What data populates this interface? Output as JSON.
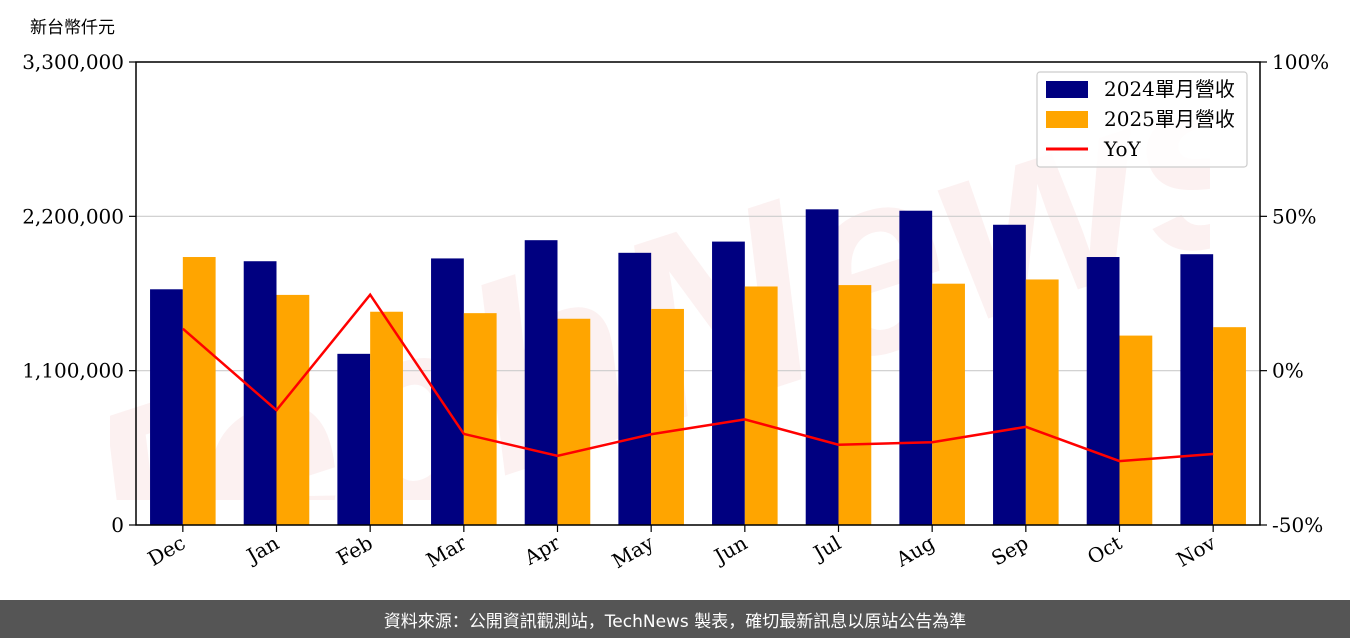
{
  "chart_data": {
    "type": "bar",
    "y_unit_label": "新台幣仟元",
    "categories": [
      "Dec",
      "Jan",
      "Feb",
      "Mar",
      "Apr",
      "May",
      "Jun",
      "Jul",
      "Aug",
      "Sep",
      "Oct",
      "Nov"
    ],
    "series": [
      {
        "name": "2024單月營收",
        "type": "bar",
        "axis": "left",
        "color": "#000080",
        "values": [
          1680000,
          1880000,
          1220000,
          1900000,
          2030000,
          1940000,
          2020000,
          2250000,
          2240000,
          2140000,
          1910000,
          1930000
        ]
      },
      {
        "name": "2025單月營收",
        "type": "bar",
        "axis": "left",
        "color": "#ffa500",
        "values": [
          1910000,
          1640000,
          1520000,
          1510000,
          1470000,
          1540000,
          1700000,
          1710000,
          1720000,
          1750000,
          1350000,
          1410000
        ]
      },
      {
        "name": "YoY",
        "type": "line",
        "axis": "right",
        "color": "#ff0000",
        "values": [
          13.6,
          -12.8,
          24.6,
          -20.5,
          -27.6,
          -20.6,
          -15.8,
          -24.0,
          -23.2,
          -18.2,
          -29.3,
          -27.0
        ]
      }
    ],
    "y_left": {
      "ylim": [
        0,
        3300000
      ],
      "ticks": [
        "0",
        "1,100,000",
        "2,200,000",
        "3,300,000"
      ],
      "tick_values": [
        0,
        1100000,
        2200000,
        3300000
      ]
    },
    "y_right": {
      "ylim": [
        -50,
        100
      ],
      "ticks": [
        "-50%",
        "0%",
        "50%",
        "100%"
      ],
      "tick_values": [
        -50,
        0,
        50,
        100
      ]
    },
    "grid": true,
    "legend_position": "top-right"
  },
  "watermark": "TechNews",
  "footer": {
    "text": "資料來源：公開資訊觀測站，TechNews 製表，確切最新訊息以原站公告為準"
  }
}
